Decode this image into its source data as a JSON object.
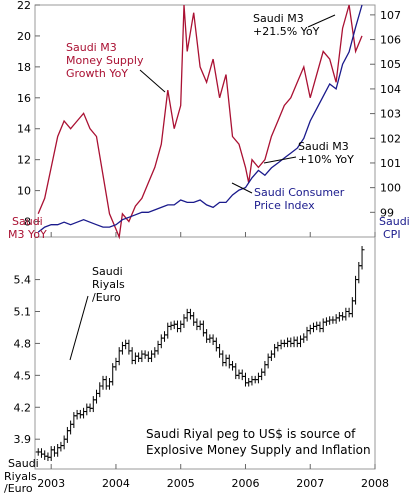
{
  "chart_data": [
    {
      "type": "line",
      "panel": "top",
      "y_left": {
        "label": "Saudi M3 YoY",
        "range": [
          7,
          22
        ],
        "ticks": [
          "22",
          "20",
          "18",
          "16",
          "14",
          "12",
          "10",
          "8"
        ]
      },
      "y_right": {
        "label": "Saudi CPI",
        "range": [
          98,
          107.4
        ],
        "ticks": [
          "107",
          "106",
          "105",
          "104",
          "103",
          "102",
          "101",
          "100",
          "99"
        ]
      },
      "grid": false,
      "series": [
        {
          "name": "Saudi M3 Money Supply Growth YoY",
          "axis": "left",
          "color": "#aa1133",
          "x": [
            2002.8,
            2002.9,
            2003.0,
            2003.1,
            2003.2,
            2003.3,
            2003.4,
            2003.5,
            2003.6,
            2003.7,
            2003.8,
            2003.9,
            2004.0,
            2004.05,
            2004.1,
            2004.2,
            2004.3,
            2004.4,
            2004.5,
            2004.6,
            2004.7,
            2004.8,
            2004.9,
            2005.0,
            2005.05,
            2005.1,
            2005.2,
            2005.3,
            2005.4,
            2005.5,
            2005.6,
            2005.7,
            2005.8,
            2005.9,
            2006.0,
            2006.05,
            2006.1,
            2006.2,
            2006.3,
            2006.4,
            2006.5,
            2006.6,
            2006.7,
            2006.8,
            2006.9,
            2007.0,
            2007.1,
            2007.2,
            2007.3,
            2007.4,
            2007.5,
            2007.6,
            2007.7,
            2007.8
          ],
          "values": [
            8.5,
            9.5,
            11.5,
            13.5,
            14.5,
            14.0,
            14.5,
            15.0,
            14.0,
            13.5,
            11.0,
            8.5,
            7.5,
            7.0,
            8.5,
            8.0,
            9.0,
            9.5,
            10.5,
            11.5,
            13.0,
            16.5,
            14.0,
            15.5,
            22.0,
            19.0,
            21.5,
            18.0,
            17.0,
            18.5,
            16.0,
            17.5,
            13.5,
            13.0,
            11.5,
            10.5,
            12.0,
            11.5,
            12.0,
            13.5,
            14.5,
            15.5,
            16.0,
            17.0,
            18.0,
            16.0,
            17.5,
            19.0,
            18.5,
            17.0,
            20.5,
            22.0,
            19.0,
            20.0
          ]
        },
        {
          "name": "Saudi Consumer Price Index",
          "axis": "right",
          "color": "#1a1a8c",
          "x": [
            2002.8,
            2002.9,
            2003.0,
            2003.1,
            2003.2,
            2003.3,
            2003.4,
            2003.5,
            2003.6,
            2003.7,
            2003.8,
            2003.9,
            2004.0,
            2004.1,
            2004.2,
            2004.3,
            2004.4,
            2004.5,
            2004.6,
            2004.7,
            2004.8,
            2004.9,
            2005.0,
            2005.1,
            2005.2,
            2005.3,
            2005.4,
            2005.5,
            2005.6,
            2005.7,
            2005.8,
            2005.9,
            2006.0,
            2006.1,
            2006.2,
            2006.3,
            2006.4,
            2006.5,
            2006.6,
            2006.7,
            2006.8,
            2006.9,
            2007.0,
            2007.1,
            2007.2,
            2007.3,
            2007.4,
            2007.5,
            2007.6,
            2007.7,
            2007.8
          ],
          "values": [
            98.2,
            98.4,
            98.5,
            98.5,
            98.6,
            98.5,
            98.6,
            98.7,
            98.6,
            98.5,
            98.4,
            98.4,
            98.5,
            98.7,
            98.8,
            98.9,
            99.0,
            99.0,
            99.1,
            99.2,
            99.3,
            99.3,
            99.5,
            99.4,
            99.4,
            99.5,
            99.3,
            99.2,
            99.4,
            99.4,
            99.7,
            99.9,
            100.0,
            100.4,
            100.7,
            100.5,
            100.8,
            101.0,
            101.2,
            101.4,
            101.6,
            102.0,
            102.7,
            103.2,
            103.7,
            104.2,
            104.0,
            105.0,
            105.5,
            106.5,
            107.4
          ]
        }
      ],
      "annotations": [
        {
          "text": [
            "Saudi M3",
            "Money Supply",
            "Growth YoY"
          ],
          "color": "red"
        },
        {
          "text": [
            "Saudi M3",
            "+21.5% YoY"
          ],
          "color": "black"
        },
        {
          "text": [
            "Saudi M3",
            "+10% YoY"
          ],
          "color": "black"
        },
        {
          "text": [
            "Saudi Consumer",
            "Price Index"
          ],
          "color": "blue"
        },
        {
          "text": [
            "Saudi",
            "M3 YoY"
          ],
          "color": "red"
        },
        {
          "text": [
            "Saudi",
            "CPI"
          ],
          "color": "blue"
        }
      ]
    },
    {
      "type": "ohlc",
      "panel": "bottom",
      "y": {
        "range": [
          3.62,
          5.8
        ],
        "ticks": [
          "5.4",
          "5.1",
          "4.8",
          "4.5",
          "4.2",
          "3.9"
        ]
      },
      "x_ticks": [
        "2003",
        "2004",
        "2005",
        "2006",
        "2007",
        "2008"
      ],
      "x_range": [
        2002.75,
        2008.0
      ],
      "grid": false,
      "series_name": "Saudi Riyals /Euro",
      "x": [
        2002.8,
        2002.85,
        2002.9,
        2002.95,
        2003.0,
        2003.05,
        2003.1,
        2003.15,
        2003.2,
        2003.25,
        2003.3,
        2003.35,
        2003.4,
        2003.45,
        2003.5,
        2003.55,
        2003.6,
        2003.65,
        2003.7,
        2003.75,
        2003.8,
        2003.85,
        2003.9,
        2003.95,
        2004.0,
        2004.05,
        2004.1,
        2004.15,
        2004.2,
        2004.25,
        2004.3,
        2004.35,
        2004.4,
        2004.45,
        2004.5,
        2004.55,
        2004.6,
        2004.65,
        2004.7,
        2004.75,
        2004.8,
        2004.85,
        2004.9,
        2004.95,
        2005.0,
        2005.05,
        2005.1,
        2005.15,
        2005.2,
        2005.25,
        2005.3,
        2005.35,
        2005.4,
        2005.45,
        2005.5,
        2005.55,
        2005.6,
        2005.65,
        2005.7,
        2005.75,
        2005.8,
        2005.85,
        2005.9,
        2005.95,
        2006.0,
        2006.05,
        2006.1,
        2006.15,
        2006.2,
        2006.25,
        2006.3,
        2006.35,
        2006.4,
        2006.45,
        2006.5,
        2006.55,
        2006.6,
        2006.65,
        2006.7,
        2006.75,
        2006.8,
        2006.85,
        2006.9,
        2006.95,
        2007.0,
        2007.05,
        2007.1,
        2007.15,
        2007.2,
        2007.25,
        2007.3,
        2007.35,
        2007.4,
        2007.45,
        2007.5,
        2007.55,
        2007.6,
        2007.65,
        2007.7,
        2007.75,
        2007.8
      ],
      "values": [
        3.78,
        3.76,
        3.74,
        3.73,
        3.8,
        3.77,
        3.82,
        3.84,
        3.9,
        3.98,
        4.04,
        4.12,
        4.14,
        4.13,
        4.16,
        4.2,
        4.19,
        4.27,
        4.33,
        4.4,
        4.46,
        4.4,
        4.44,
        4.58,
        4.63,
        4.73,
        4.78,
        4.8,
        4.73,
        4.64,
        4.68,
        4.66,
        4.7,
        4.69,
        4.66,
        4.7,
        4.73,
        4.79,
        4.85,
        4.88,
        4.96,
        4.97,
        4.98,
        4.94,
        4.98,
        5.04,
        5.09,
        5.06,
        5.0,
        4.96,
        4.98,
        4.9,
        4.84,
        4.85,
        4.82,
        4.76,
        4.7,
        4.62,
        4.66,
        4.6,
        4.58,
        4.5,
        4.52,
        4.49,
        4.43,
        4.44,
        4.46,
        4.46,
        4.49,
        4.53,
        4.6,
        4.67,
        4.7,
        4.76,
        4.78,
        4.8,
        4.8,
        4.82,
        4.8,
        4.83,
        4.8,
        4.84,
        4.86,
        4.92,
        4.94,
        4.96,
        4.97,
        4.94,
        5.0,
        5.01,
        5.02,
        5.02,
        5.04,
        5.06,
        5.05,
        5.1,
        5.08,
        5.2,
        5.4,
        5.53,
        5.68
      ],
      "annotations": [
        {
          "text": [
            "Saudi",
            "Riyals",
            "/Euro"
          ]
        },
        {
          "text": [
            "Saudi",
            "Riyals",
            "/Euro"
          ]
        },
        {
          "text": [
            "Saudi Riyal peg to US$ is source of",
            "Explosive Money Supply and Inflation"
          ]
        }
      ]
    }
  ]
}
